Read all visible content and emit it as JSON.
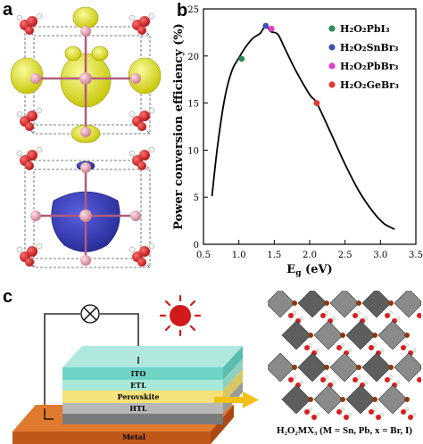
{
  "panels": {
    "a": "a",
    "b": "b",
    "c": "c"
  },
  "chart_data": {
    "type": "line",
    "xlabel": "E",
    "xlabel_sub": "g",
    "xlabel_unit": " (eV)",
    "ylabel": "Power conversion efficiency (%)",
    "xlim": [
      0.5,
      3.5
    ],
    "ylim": [
      0,
      25
    ],
    "xticks": [
      "0.5",
      "1.0",
      "1.5",
      "2.0",
      "2.5",
      "3.0",
      "3.5"
    ],
    "yticks": [
      "0",
      "5",
      "10",
      "15",
      "20",
      "25"
    ],
    "grid": false,
    "legend_placement": "top-right",
    "curve": {
      "x": [
        0.62,
        0.7,
        0.8,
        0.9,
        1.0,
        1.1,
        1.2,
        1.3,
        1.38,
        1.45,
        1.55,
        1.65,
        1.8,
        2.0,
        2.1,
        2.3,
        2.5,
        2.7,
        2.9,
        3.05,
        3.2
      ],
      "y": [
        5.1,
        10.5,
        15.5,
        18.4,
        19.8,
        21.0,
        21.9,
        22.4,
        23.2,
        22.6,
        22.3,
        20.8,
        18.5,
        15.9,
        15.0,
        11.8,
        8.5,
        5.6,
        3.4,
        2.2,
        1.6
      ]
    },
    "points": [
      {
        "name": "H₂O₂PbI₃",
        "x": 1.04,
        "y": 19.7,
        "color": "#2e8b57"
      },
      {
        "name": "H₂O₂SnBr₃",
        "x": 1.38,
        "y": 23.2,
        "color": "#3f51b5"
      },
      {
        "name": "H₂O₂PbBr₃",
        "x": 1.46,
        "y": 22.9,
        "color": "#e040c8"
      },
      {
        "name": "H₂O₂GeBr₃",
        "x": 2.1,
        "y": 15.0,
        "color": "#e53935"
      }
    ]
  },
  "device_layers": [
    "ITO",
    "ETL",
    "Perovskite",
    "HTL",
    "Metal"
  ],
  "caption": {
    "formula": "H₂O₂MX₃",
    "detail": " (M = Sn, Pb, x = Br, I)"
  },
  "colors": {
    "isosurface_yellow": "#e8e825",
    "isosurface_blue": "#3a3fc4",
    "atom_red": "#d62020",
    "atom_pink": "#e8a0b0",
    "sun": "#d11a1a",
    "arrow": "#f2c21b",
    "octahedron": "#6b6b6b"
  }
}
